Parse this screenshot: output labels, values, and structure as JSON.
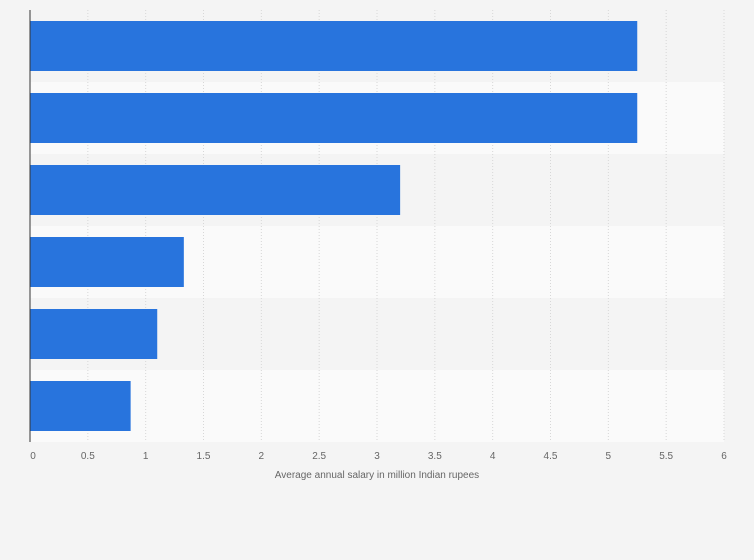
{
  "chart_data": {
    "type": "bar",
    "orientation": "horizontal",
    "categories": [
      "",
      "",
      "",
      "",
      "",
      ""
    ],
    "values": [
      5.25,
      5.25,
      3.2,
      1.33,
      1.1,
      0.87
    ],
    "title": "",
    "xlabel": "Average annual salary in million Indian rupees",
    "ylabel": "",
    "xlim": [
      0,
      6
    ],
    "x_ticks": [
      "0",
      "0.5",
      "1",
      "1.5",
      "2",
      "2.5",
      "3",
      "3.5",
      "4",
      "4.5",
      "5",
      "5.5",
      "6"
    ],
    "x_tick_values": [
      0,
      0.5,
      1,
      1.5,
      2,
      2.5,
      3,
      3.5,
      4,
      4.5,
      5,
      5.5,
      6
    ],
    "grid": true,
    "bar_color": "#2874dd",
    "band_colors": [
      "#f4f4f4",
      "#fafafa"
    ],
    "grid_color": "#d7d7d7",
    "axis_color": "#333333"
  }
}
